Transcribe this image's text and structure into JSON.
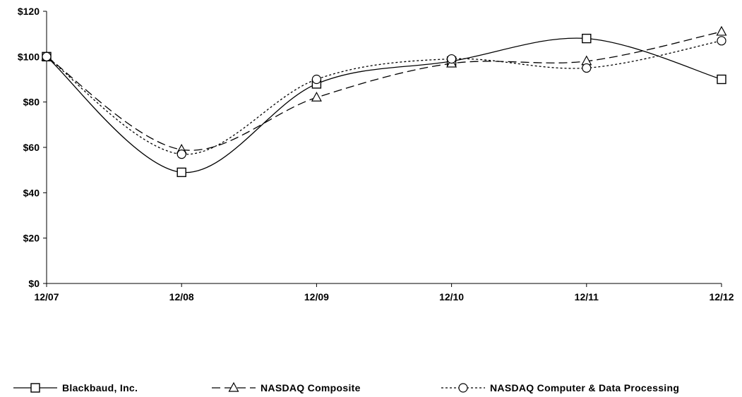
{
  "chart_data": {
    "type": "line",
    "title": "",
    "xlabel": "",
    "ylabel": "",
    "categories": [
      "12/07",
      "12/08",
      "12/09",
      "12/10",
      "12/11",
      "12/12"
    ],
    "ylim": [
      0,
      120
    ],
    "yticks": [
      0,
      20,
      40,
      60,
      80,
      100,
      120
    ],
    "ytick_labels": [
      "$0",
      "$20",
      "$40",
      "$60",
      "$80",
      "$100",
      "$120"
    ],
    "grid": false,
    "legend_position": "bottom",
    "series": [
      {
        "name": "Blackbaud, Inc.",
        "values": [
          100,
          49,
          88,
          98,
          108,
          90
        ],
        "marker": "square",
        "dash": "solid",
        "color": "#000000"
      },
      {
        "name": "NASDAQ Composite",
        "values": [
          100,
          59,
          82,
          97,
          98,
          111
        ],
        "marker": "triangle",
        "dash": "dashed",
        "color": "#000000"
      },
      {
        "name": "NASDAQ Computer & Data Processing",
        "values": [
          100,
          57,
          90,
          99,
          95,
          107
        ],
        "marker": "circle",
        "dash": "dotted",
        "color": "#000000"
      }
    ]
  }
}
